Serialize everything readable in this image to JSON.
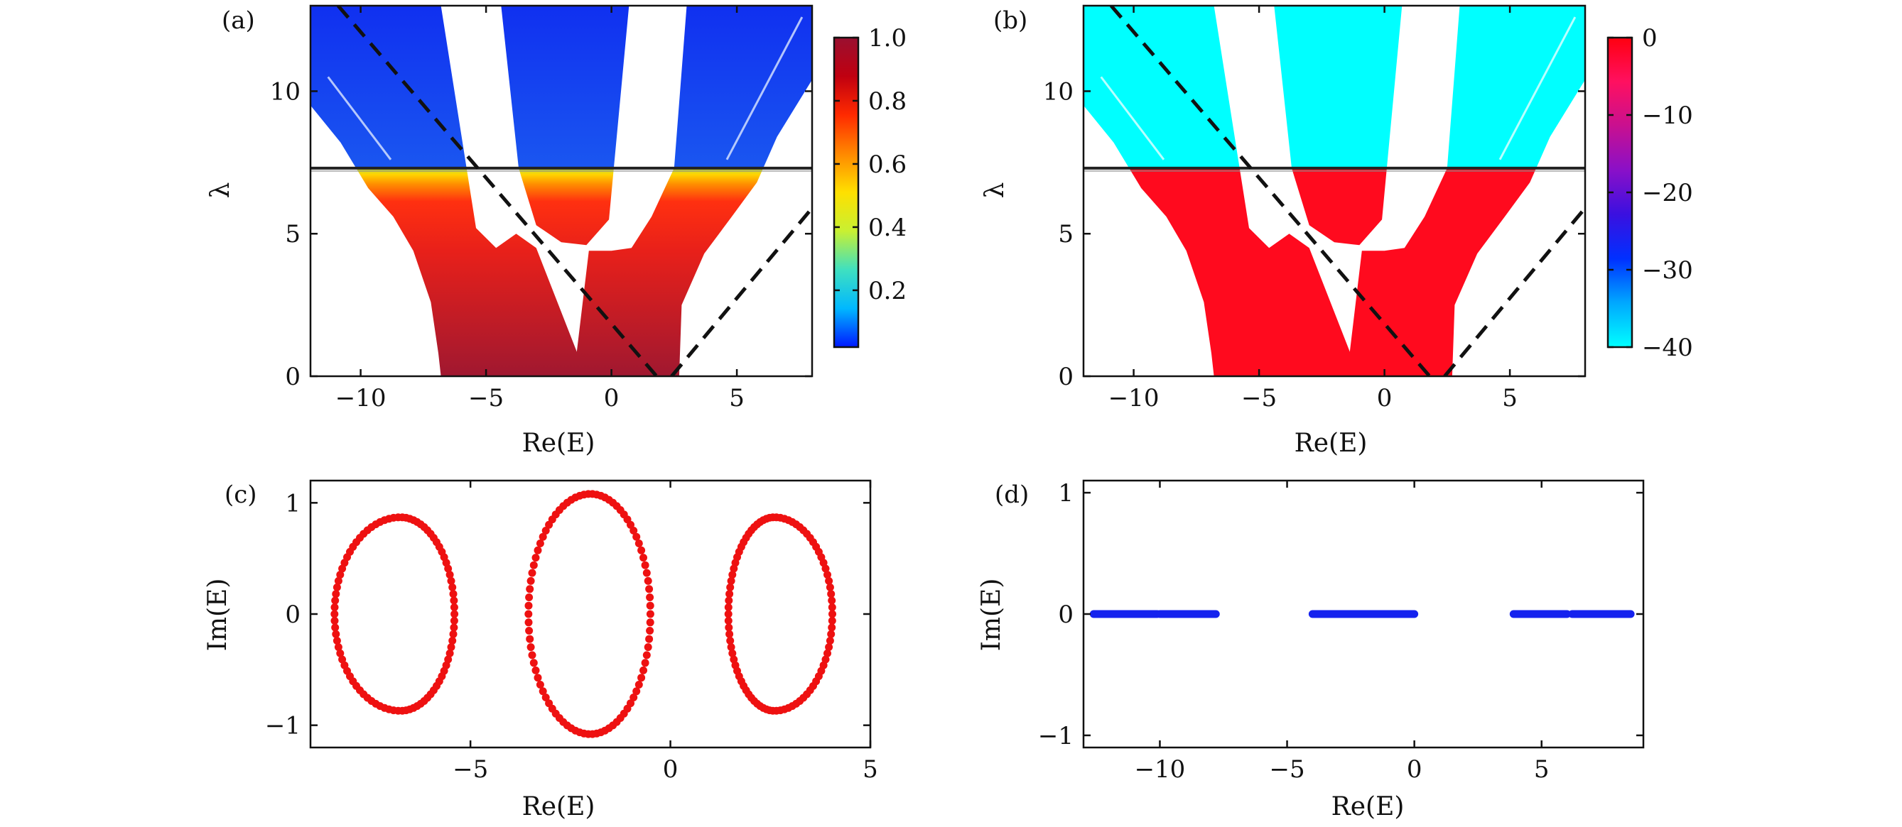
{
  "chart_data": [
    {
      "panel": "(a)",
      "type": "heatmap",
      "xlabel": "Re(E)",
      "ylabel": "λ",
      "xlim": [
        -12,
        8
      ],
      "ylim": [
        0,
        13
      ],
      "xticks": [
        -10,
        -5,
        0,
        5
      ],
      "xtick_labels": [
        "−10",
        "−5",
        "0",
        "5"
      ],
      "yticks": [
        0,
        5,
        10
      ],
      "ytick_labels": [
        "0",
        "5",
        "10"
      ],
      "horizontal_line": 7.3,
      "colorbar": {
        "range": [
          0.02,
          1.0
        ],
        "ticks": [
          0.2,
          0.4,
          0.6,
          0.8,
          1.0
        ],
        "tick_labels": [
          "0.2",
          "0.4",
          "0.6",
          "0.8",
          "1.0"
        ],
        "colors": [
          "#0018ff",
          "#00b8ff",
          "#3fe0c0",
          "#c8f032",
          "#ffe000",
          "#ff8800",
          "#ff2a00",
          "#c00010",
          "#9a1030"
        ]
      },
      "colors": {
        "low": "#1030f0",
        "transition_mid": "#ffe000",
        "high_top": "#e8201a",
        "high_bottom": "#a01830"
      },
      "dashed_lines": [
        {
          "points": [
            [
              -10.9,
              13
            ],
            [
              1.8,
              0
            ]
          ]
        },
        {
          "points": [
            [
              2.4,
              0
            ],
            [
              8,
              5.9
            ]
          ]
        }
      ],
      "regions": [
        {
          "name": "left lobe",
          "boundary": [
            [
              -12,
              9.5
            ],
            [
              -10.8,
              8.2
            ],
            [
              -9.7,
              6.6
            ],
            [
              -8.7,
              5.6
            ],
            [
              -7.9,
              4.4
            ],
            [
              -7.2,
              2.6
            ],
            [
              -6.9,
              0.8
            ],
            [
              -6.8,
              0
            ],
            [
              -1,
              0
            ],
            [
              -3,
              4.5
            ],
            [
              -3.8,
              5.0
            ],
            [
              -4.6,
              4.5
            ],
            [
              -5.4,
              5.2
            ],
            [
              -6.8,
              13
            ],
            [
              -12,
              13
            ]
          ]
        },
        {
          "name": "center column",
          "boundary": [
            [
              -4.4,
              13
            ],
            [
              -3.7,
              7.3
            ],
            [
              -3.0,
              5.3
            ],
            [
              -2.0,
              4.7
            ],
            [
              -1,
              4.6
            ],
            [
              -0.1,
              5.5
            ],
            [
              0.7,
              13
            ]
          ]
        },
        {
          "name": "right lobe",
          "boundary": [
            [
              3.0,
              13
            ],
            [
              2.5,
              7.3
            ],
            [
              1.6,
              5.6
            ],
            [
              0.8,
              4.5
            ],
            [
              0,
              4.4
            ],
            [
              -0.9,
              4.4
            ],
            [
              -1.5,
              0
            ],
            [
              2.7,
              0
            ],
            [
              2.8,
              2.5
            ],
            [
              3.7,
              4.3
            ],
            [
              4.8,
              5.6
            ],
            [
              5.8,
              6.8
            ],
            [
              6.6,
              8.4
            ],
            [
              8,
              10.4
            ],
            [
              8,
              13
            ]
          ]
        }
      ]
    },
    {
      "panel": "(b)",
      "type": "heatmap",
      "xlabel": "Re(E)",
      "ylabel": "λ",
      "xlim": [
        -12,
        8
      ],
      "ylim": [
        0,
        13
      ],
      "xticks": [
        -10,
        -5,
        0,
        5
      ],
      "xtick_labels": [
        "−10",
        "−5",
        "0",
        "5"
      ],
      "yticks": [
        0,
        5,
        10
      ],
      "ytick_labels": [
        "0",
        "5",
        "10"
      ],
      "horizontal_line": 7.3,
      "colorbar": {
        "range": [
          -40,
          0
        ],
        "ticks": [
          -40,
          -30,
          -20,
          -10,
          0
        ],
        "tick_labels": [
          "−40",
          "−30",
          "−20",
          "−10",
          "0"
        ],
        "colors": [
          "#00ffff",
          "#00a8ff",
          "#0030ff",
          "#3a10e0",
          "#8a10c8",
          "#c81090",
          "#ff1060",
          "#ff0010"
        ]
      },
      "colors": {
        "low": "#00ffff",
        "high": "#ff0a1e"
      },
      "dashed_lines": [
        {
          "points": [
            [
              -10.9,
              13
            ],
            [
              1.8,
              0
            ]
          ]
        },
        {
          "points": [
            [
              2.4,
              0
            ],
            [
              8,
              5.9
            ]
          ]
        }
      ],
      "regions": [
        {
          "name": "left lobe",
          "boundary": [
            [
              -12,
              9.5
            ],
            [
              -10.8,
              8.2
            ],
            [
              -9.7,
              6.6
            ],
            [
              -8.7,
              5.6
            ],
            [
              -7.9,
              4.4
            ],
            [
              -7.2,
              2.6
            ],
            [
              -6.9,
              0.8
            ],
            [
              -6.8,
              0
            ],
            [
              -1,
              0
            ],
            [
              -3,
              4.5
            ],
            [
              -3.8,
              5.0
            ],
            [
              -4.6,
              4.5
            ],
            [
              -5.4,
              5.2
            ],
            [
              -6.8,
              13
            ],
            [
              -12,
              13
            ]
          ]
        },
        {
          "name": "center column",
          "boundary": [
            [
              -4.4,
              13
            ],
            [
              -3.7,
              7.3
            ],
            [
              -3.0,
              5.3
            ],
            [
              -2.0,
              4.7
            ],
            [
              -1,
              4.6
            ],
            [
              -0.1,
              5.5
            ],
            [
              0.7,
              13
            ]
          ]
        },
        {
          "name": "right lobe",
          "boundary": [
            [
              3.0,
              13
            ],
            [
              2.5,
              7.3
            ],
            [
              1.6,
              5.6
            ],
            [
              0.8,
              4.5
            ],
            [
              0,
              4.4
            ],
            [
              -0.9,
              4.4
            ],
            [
              -1.5,
              0
            ],
            [
              2.7,
              0
            ],
            [
              2.8,
              2.5
            ],
            [
              3.7,
              4.3
            ],
            [
              4.8,
              5.6
            ],
            [
              5.8,
              6.8
            ],
            [
              6.6,
              8.4
            ],
            [
              8,
              10.4
            ],
            [
              8,
              13
            ]
          ]
        }
      ]
    },
    {
      "panel": "(c)",
      "type": "scatter",
      "xlabel": "Re(E)",
      "ylabel": "Im(E)",
      "xlim": [
        -9,
        5
      ],
      "ylim": [
        -1.2,
        1.2
      ],
      "xticks": [
        -5,
        0,
        5
      ],
      "xtick_labels": [
        "−5",
        "0",
        "5"
      ],
      "yticks": [
        -1,
        0,
        1
      ],
      "ytick_labels": [
        "−1",
        "0",
        "1"
      ],
      "marker_color": "#ee1111",
      "loops": [
        {
          "center": [
            -6.75,
            0
          ],
          "radius_x_left": 1.65,
          "radius_x_right": 1.35,
          "radius_y": 0.87
        },
        {
          "center": [
            -2.0,
            0
          ],
          "radius_x_left": 1.55,
          "radius_x_right": 1.5,
          "radius_y": 1.08
        },
        {
          "center": [
            2.6,
            0
          ],
          "radius_x_left": 1.15,
          "radius_x_right": 1.45,
          "radius_y": 0.87
        }
      ]
    },
    {
      "panel": "(d)",
      "type": "scatter",
      "xlabel": "Re(E)",
      "ylabel": "Im(E)",
      "xlim": [
        -13,
        9
      ],
      "ylim": [
        -1.1,
        1.1
      ],
      "xticks": [
        -10,
        -5,
        0,
        5
      ],
      "xtick_labels": [
        "−10",
        "−5",
        "0",
        "5"
      ],
      "yticks": [
        -1,
        0,
        1
      ],
      "ytick_labels": [
        "−1",
        "0",
        "1"
      ],
      "marker_color": "#1522ee",
      "segments": [
        [
          -12.6,
          -10.1
        ],
        [
          -10.0,
          -7.8
        ],
        [
          -4.0,
          0.0
        ],
        [
          3.9,
          6.0
        ],
        [
          6.2,
          8.5
        ]
      ],
      "y_value": 0
    }
  ]
}
